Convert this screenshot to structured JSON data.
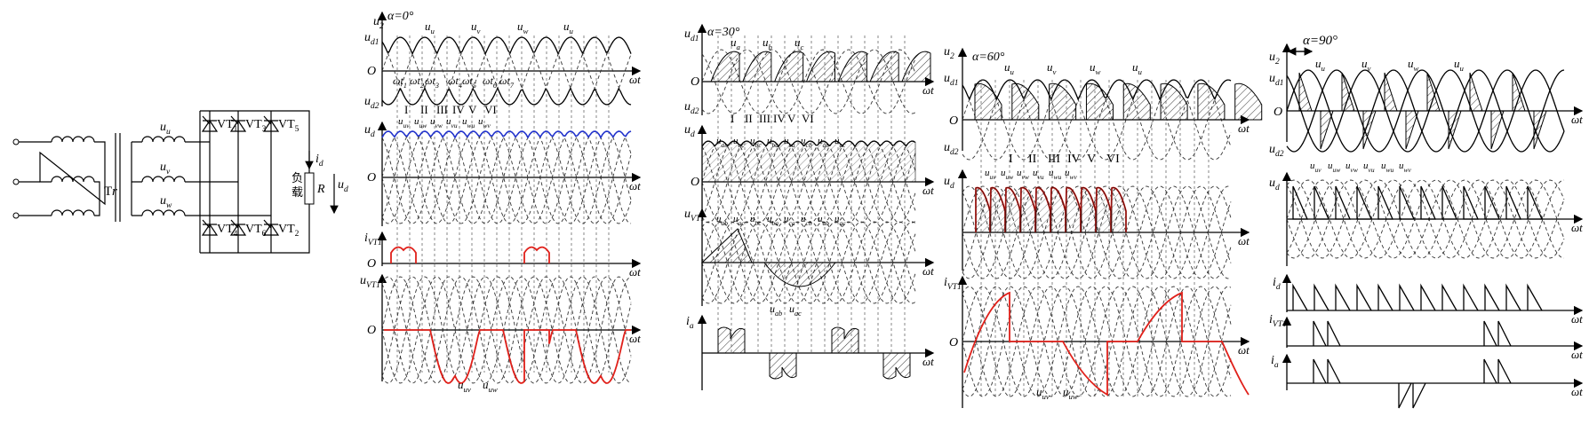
{
  "circuit": {
    "transformer": "Tr",
    "sec_u": "u",
    "sec_u_sub": "u",
    "sec_v": "u",
    "sec_v_sub": "v",
    "sec_w": "u",
    "sec_w_sub": "w",
    "thyristors": [
      {
        "base": "VT",
        "sub": "1"
      },
      {
        "base": "VT",
        "sub": "3"
      },
      {
        "base": "VT",
        "sub": "5"
      },
      {
        "base": "VT",
        "sub": "4"
      },
      {
        "base": "VT",
        "sub": "6"
      },
      {
        "base": "VT",
        "sub": "2"
      }
    ],
    "load_cn": "负载",
    "load_r": "R",
    "id_label": "i",
    "id_sub": "d",
    "ud_label": "u",
    "ud_sub": "d"
  },
  "panels": [
    {
      "alpha": "α=0°",
      "labels": {
        "u2": "u",
        "u2s": "2",
        "ud1": "u",
        "ud1s": "d1",
        "ud2": "u",
        "ud2s": "d2",
        "ud": "u",
        "uds": "d",
        "ivt": "i",
        "ivts": "VT1",
        "uvt": "u",
        "uvts": "VT1",
        "o": "O",
        "wt": "ωt"
      },
      "phase_tags": [
        {
          "b": "u",
          "s": "u"
        },
        {
          "b": "u",
          "s": "v"
        },
        {
          "b": "u",
          "s": "w"
        },
        {
          "b": "u",
          "s": "u"
        }
      ],
      "omega_ticks": [
        "ωt",
        "ωt",
        "ωt",
        "ωt",
        "ωt",
        "ωt",
        "ωt"
      ],
      "omega_subs": [
        "1",
        "2",
        "3",
        "4",
        "5",
        "6",
        "7"
      ],
      "roman": [
        "I",
        "II",
        "III",
        "IV",
        "V",
        "VI"
      ],
      "pair_labels": [
        "uv",
        "uw",
        "vw",
        "vu",
        "wu",
        "wv"
      ],
      "bottom_tags": [
        {
          "b": "u",
          "s": "uv"
        },
        {
          "b": "u",
          "s": "uw"
        }
      ]
    },
    {
      "alpha": "α=30°",
      "labels": {
        "ud1": "u",
        "ud1s": "d1",
        "ud2": "u",
        "ud2s": "d2",
        "ud": "u",
        "uds": "d",
        "uvt": "u",
        "uvts": "VT1",
        "ia": "i",
        "ias": "a",
        "o": "O",
        "wt": "ωt"
      },
      "phase_tags": [
        {
          "b": "u",
          "s": "a"
        },
        {
          "b": "u",
          "s": "b"
        },
        {
          "b": "u",
          "s": "c"
        }
      ],
      "roman": [
        "I",
        "II",
        "III",
        "IV",
        "V",
        "VI"
      ],
      "pair_labels": [
        "ab",
        "ac",
        "bc",
        "ba",
        "ca",
        "cb",
        "ab",
        "ac"
      ],
      "bottom_tags": [
        {
          "b": "u",
          "s": "ab"
        },
        {
          "b": "u",
          "s": "ac"
        }
      ]
    },
    {
      "alpha": "α=60°",
      "labels": {
        "u2": "u",
        "u2s": "2",
        "ud1": "u",
        "ud1s": "d1",
        "ud2": "u",
        "ud2s": "d2",
        "ud": "u",
        "uds": "d",
        "ivt": "i",
        "ivts": "VT1",
        "o": "O",
        "wt": "ωt"
      },
      "phase_tags": [
        {
          "b": "u",
          "s": "u"
        },
        {
          "b": "u",
          "s": "v"
        },
        {
          "b": "u",
          "s": "w"
        },
        {
          "b": "u",
          "s": "u"
        }
      ],
      "roman": [
        "I",
        "II",
        "III",
        "IV",
        "V",
        "VI"
      ],
      "pair_labels": [
        "uv",
        "uw",
        "vw",
        "vu",
        "wu",
        "wv"
      ],
      "bottom_tags": [
        {
          "b": "u",
          "s": "uv"
        },
        {
          "b": "u",
          "s": "uw"
        }
      ]
    },
    {
      "alpha": "α=90°",
      "labels": {
        "u2": "u",
        "u2s": "2",
        "ud1": "u",
        "ud1s": "d1",
        "ud2": "u",
        "ud2s": "d2",
        "ud": "u",
        "uds": "d",
        "id": "i",
        "ids": "d",
        "ivt": "i",
        "ivts": "VT1",
        "ia": "i",
        "ias": "a",
        "o": "O",
        "wt": "ωt"
      },
      "phase_tags": [
        {
          "b": "u",
          "s": "u"
        },
        {
          "b": "u",
          "s": "v"
        },
        {
          "b": "u",
          "s": "w"
        },
        {
          "b": "u",
          "s": "u"
        }
      ],
      "pair_labels": [
        "uv",
        "uw",
        "vw",
        "vu",
        "wu",
        "wv"
      ]
    }
  ]
}
